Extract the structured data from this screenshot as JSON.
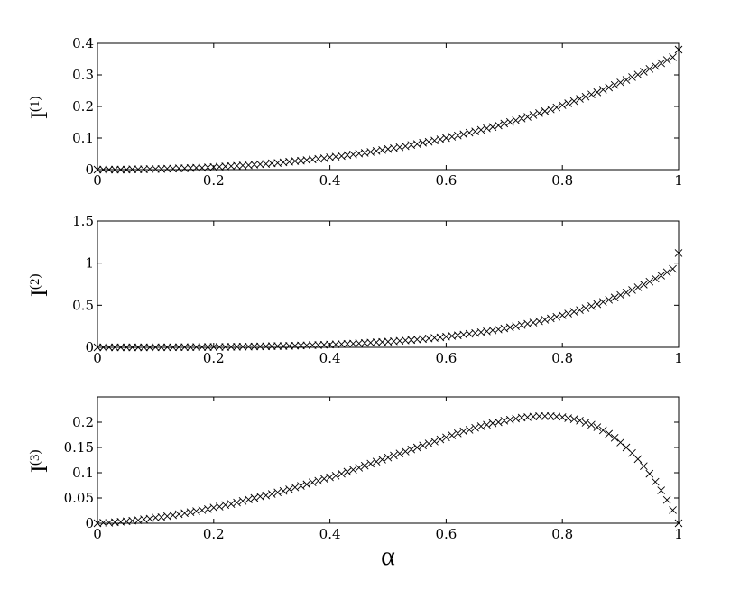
{
  "chart_data": [
    {
      "type": "scatter",
      "marker": "x",
      "ylabel_base": "I",
      "ylabel_sup": "(1)",
      "xlim": [
        0,
        1
      ],
      "ylim": [
        0,
        0.4
      ],
      "xticks": [
        "0",
        "0.2",
        "0.4",
        "0.6",
        "0.8",
        "1"
      ],
      "yticks": [
        "0",
        "0.1",
        "0.2",
        "0.3",
        "0.4"
      ],
      "x": [
        0,
        0.01,
        0.02,
        0.03,
        0.04,
        0.05,
        0.06,
        0.07,
        0.08,
        0.09,
        0.1,
        0.11,
        0.12,
        0.13,
        0.14,
        0.15,
        0.16,
        0.17,
        0.18,
        0.19,
        0.2,
        0.21,
        0.22,
        0.23,
        0.24,
        0.25,
        0.26,
        0.27,
        0.28,
        0.29,
        0.3,
        0.31,
        0.32,
        0.33,
        0.34,
        0.35,
        0.36,
        0.37,
        0.38,
        0.39,
        0.4,
        0.41,
        0.42,
        0.43,
        0.44,
        0.45,
        0.46,
        0.47,
        0.48,
        0.49,
        0.5,
        0.51,
        0.52,
        0.53,
        0.54,
        0.55,
        0.56,
        0.57,
        0.58,
        0.59,
        0.6,
        0.61,
        0.62,
        0.63,
        0.64,
        0.65,
        0.66,
        0.67,
        0.68,
        0.69,
        0.7,
        0.71,
        0.72,
        0.73,
        0.74,
        0.75,
        0.76,
        0.77,
        0.78,
        0.79,
        0.8,
        0.81,
        0.82,
        0.83,
        0.84,
        0.85,
        0.86,
        0.87,
        0.88,
        0.89,
        0.9,
        0.91,
        0.92,
        0.93,
        0.94,
        0.95,
        0.96,
        0.97,
        0.98,
        0.99,
        1
      ],
      "y": [
        0,
        0,
        0,
        0,
        0,
        0,
        0.001,
        0.001,
        0.001,
        0.002,
        0.002,
        0.002,
        0.003,
        0.003,
        0.004,
        0.004,
        0.005,
        0.006,
        0.006,
        0.007,
        0.008,
        0.009,
        0.01,
        0.011,
        0.012,
        0.013,
        0.014,
        0.016,
        0.017,
        0.018,
        0.02,
        0.021,
        0.023,
        0.025,
        0.027,
        0.028,
        0.03,
        0.032,
        0.034,
        0.036,
        0.039,
        0.041,
        0.043,
        0.046,
        0.048,
        0.051,
        0.053,
        0.056,
        0.059,
        0.062,
        0.065,
        0.068,
        0.071,
        0.074,
        0.078,
        0.081,
        0.085,
        0.088,
        0.092,
        0.096,
        0.1,
        0.104,
        0.108,
        0.112,
        0.117,
        0.121,
        0.126,
        0.131,
        0.135,
        0.14,
        0.146,
        0.151,
        0.156,
        0.162,
        0.167,
        0.173,
        0.179,
        0.185,
        0.191,
        0.197,
        0.204,
        0.21,
        0.217,
        0.224,
        0.231,
        0.238,
        0.245,
        0.253,
        0.26,
        0.268,
        0.276,
        0.284,
        0.293,
        0.301,
        0.31,
        0.319,
        0.328,
        0.337,
        0.347,
        0.356,
        0.38
      ]
    },
    {
      "type": "scatter",
      "marker": "x",
      "ylabel_base": "I",
      "ylabel_sup": "(2)",
      "xlim": [
        0,
        1
      ],
      "ylim": [
        0,
        1.5
      ],
      "xticks": [
        "0",
        "0.2",
        "0.4",
        "0.6",
        "0.8",
        "1"
      ],
      "yticks": [
        "0",
        "0.5",
        "1",
        "1.5"
      ],
      "x": [
        0,
        0.01,
        0.02,
        0.03,
        0.04,
        0.05,
        0.06,
        0.07,
        0.08,
        0.09,
        0.1,
        0.11,
        0.12,
        0.13,
        0.14,
        0.15,
        0.16,
        0.17,
        0.18,
        0.19,
        0.2,
        0.21,
        0.22,
        0.23,
        0.24,
        0.25,
        0.26,
        0.27,
        0.28,
        0.29,
        0.3,
        0.31,
        0.32,
        0.33,
        0.34,
        0.35,
        0.36,
        0.37,
        0.38,
        0.39,
        0.4,
        0.41,
        0.42,
        0.43,
        0.44,
        0.45,
        0.46,
        0.47,
        0.48,
        0.49,
        0.5,
        0.51,
        0.52,
        0.53,
        0.54,
        0.55,
        0.56,
        0.57,
        0.58,
        0.59,
        0.6,
        0.61,
        0.62,
        0.63,
        0.64,
        0.65,
        0.66,
        0.67,
        0.68,
        0.69,
        0.7,
        0.71,
        0.72,
        0.73,
        0.74,
        0.75,
        0.76,
        0.77,
        0.78,
        0.79,
        0.8,
        0.81,
        0.82,
        0.83,
        0.84,
        0.85,
        0.86,
        0.87,
        0.88,
        0.89,
        0.9,
        0.91,
        0.92,
        0.93,
        0.94,
        0.95,
        0.96,
        0.97,
        0.98,
        0.99,
        1
      ],
      "y": [
        0,
        0,
        0,
        0,
        0,
        0,
        0,
        0,
        0,
        0,
        0.001,
        0.001,
        0.001,
        0.001,
        0.002,
        0.002,
        0.002,
        0.003,
        0.003,
        0.004,
        0.004,
        0.005,
        0.005,
        0.006,
        0.007,
        0.008,
        0.009,
        0.01,
        0.011,
        0.012,
        0.014,
        0.015,
        0.016,
        0.018,
        0.02,
        0.022,
        0.024,
        0.026,
        0.028,
        0.03,
        0.033,
        0.035,
        0.038,
        0.041,
        0.044,
        0.047,
        0.051,
        0.055,
        0.059,
        0.063,
        0.067,
        0.072,
        0.077,
        0.082,
        0.087,
        0.093,
        0.099,
        0.105,
        0.112,
        0.119,
        0.126,
        0.134,
        0.142,
        0.151,
        0.16,
        0.169,
        0.179,
        0.19,
        0.201,
        0.212,
        0.224,
        0.237,
        0.25,
        0.264,
        0.279,
        0.294,
        0.31,
        0.327,
        0.344,
        0.362,
        0.381,
        0.401,
        0.422,
        0.443,
        0.466,
        0.489,
        0.513,
        0.539,
        0.565,
        0.592,
        0.621,
        0.65,
        0.681,
        0.713,
        0.746,
        0.78,
        0.816,
        0.853,
        0.891,
        0.931,
        1.12
      ]
    },
    {
      "type": "scatter",
      "marker": "x",
      "ylabel_base": "I",
      "ylabel_sup": "(3)",
      "xlabel": "α",
      "xlim": [
        0,
        1
      ],
      "ylim": [
        0,
        0.25
      ],
      "xticks": [
        "0",
        "0.2",
        "0.4",
        "0.6",
        "0.8",
        "1"
      ],
      "yticks": [
        "0",
        "0.05",
        "0.1",
        "0.15",
        "0.2"
      ],
      "x": [
        0,
        0.01,
        0.02,
        0.03,
        0.04,
        0.05,
        0.06,
        0.07,
        0.08,
        0.09,
        0.1,
        0.11,
        0.12,
        0.13,
        0.14,
        0.15,
        0.16,
        0.17,
        0.18,
        0.19,
        0.2,
        0.21,
        0.22,
        0.23,
        0.24,
        0.25,
        0.26,
        0.27,
        0.28,
        0.29,
        0.3,
        0.31,
        0.32,
        0.33,
        0.34,
        0.35,
        0.36,
        0.37,
        0.38,
        0.39,
        0.4,
        0.41,
        0.42,
        0.43,
        0.44,
        0.45,
        0.46,
        0.47,
        0.48,
        0.49,
        0.5,
        0.51,
        0.52,
        0.53,
        0.54,
        0.55,
        0.56,
        0.57,
        0.58,
        0.59,
        0.6,
        0.61,
        0.62,
        0.63,
        0.64,
        0.65,
        0.66,
        0.67,
        0.68,
        0.69,
        0.7,
        0.71,
        0.72,
        0.73,
        0.74,
        0.75,
        0.76,
        0.77,
        0.78,
        0.79,
        0.8,
        0.81,
        0.82,
        0.83,
        0.84,
        0.85,
        0.86,
        0.87,
        0.88,
        0.89,
        0.9,
        0.91,
        0.92,
        0.93,
        0.94,
        0.95,
        0.96,
        0.97,
        0.98,
        0.99,
        1
      ],
      "y": [
        0,
        0.001,
        0.001,
        0.002,
        0.003,
        0.004,
        0.005,
        0.006,
        0.008,
        0.009,
        0.011,
        0.012,
        0.014,
        0.016,
        0.018,
        0.02,
        0.022,
        0.024,
        0.026,
        0.028,
        0.031,
        0.033,
        0.036,
        0.038,
        0.041,
        0.044,
        0.047,
        0.05,
        0.053,
        0.055,
        0.058,
        0.061,
        0.064,
        0.067,
        0.071,
        0.074,
        0.077,
        0.081,
        0.084,
        0.088,
        0.091,
        0.094,
        0.098,
        0.102,
        0.106,
        0.11,
        0.114,
        0.118,
        0.122,
        0.126,
        0.13,
        0.134,
        0.138,
        0.142,
        0.146,
        0.15,
        0.154,
        0.158,
        0.162,
        0.166,
        0.17,
        0.174,
        0.178,
        0.182,
        0.185,
        0.189,
        0.192,
        0.195,
        0.198,
        0.2,
        0.203,
        0.205,
        0.207,
        0.209,
        0.21,
        0.211,
        0.212,
        0.212,
        0.212,
        0.211,
        0.21,
        0.208,
        0.206,
        0.203,
        0.199,
        0.195,
        0.19,
        0.184,
        0.177,
        0.169,
        0.16,
        0.15,
        0.139,
        0.127,
        0.113,
        0.098,
        0.082,
        0.065,
        0.046,
        0.026,
        0
      ]
    }
  ]
}
